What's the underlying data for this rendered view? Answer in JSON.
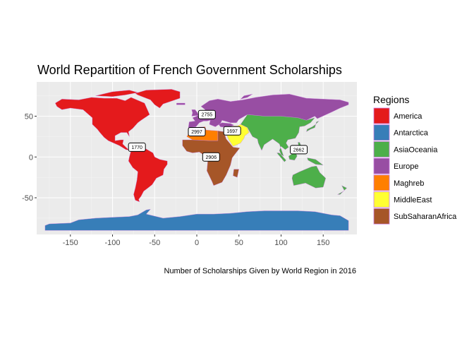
{
  "chart_data": {
    "type": "choropleth-map",
    "title": "World Repartition of French Government Scholarships",
    "caption": "Number of Scholarships Given by World Region in 2016",
    "xlim": [
      -190,
      190
    ],
    "ylim": [
      -95,
      92
    ],
    "x_ticks": [
      -150,
      -100,
      -50,
      0,
      50,
      100,
      150
    ],
    "y_ticks": [
      -50,
      0,
      50
    ],
    "legend": {
      "title": "Regions",
      "entries": [
        {
          "name": "America",
          "color": "#E41A1C"
        },
        {
          "name": "Antarctica",
          "color": "#377EB8"
        },
        {
          "name": "AsiaOceania",
          "color": "#4DAF4A"
        },
        {
          "name": "Europe",
          "color": "#984EA3"
        },
        {
          "name": "Maghreb",
          "color": "#FF7F00"
        },
        {
          "name": "MiddleEast",
          "color": "#FFFF33"
        },
        {
          "name": "SubSaharanAfrica",
          "color": "#A65628"
        }
      ]
    },
    "labels": [
      {
        "region": "America",
        "value": "1770",
        "lon": -71,
        "lat": 12
      },
      {
        "region": "Europe",
        "value": "2755",
        "lon": 12,
        "lat": 52
      },
      {
        "region": "Maghreb",
        "value": "2997",
        "lon": 0,
        "lat": 31
      },
      {
        "region": "MiddleEast",
        "value": "1697",
        "lon": 42,
        "lat": 32
      },
      {
        "region": "SubSaharanAfrica",
        "value": "2906",
        "lon": 17,
        "lat": 0
      },
      {
        "region": "AsiaOceania",
        "value": "2662",
        "lon": 121,
        "lat": 9
      }
    ]
  }
}
